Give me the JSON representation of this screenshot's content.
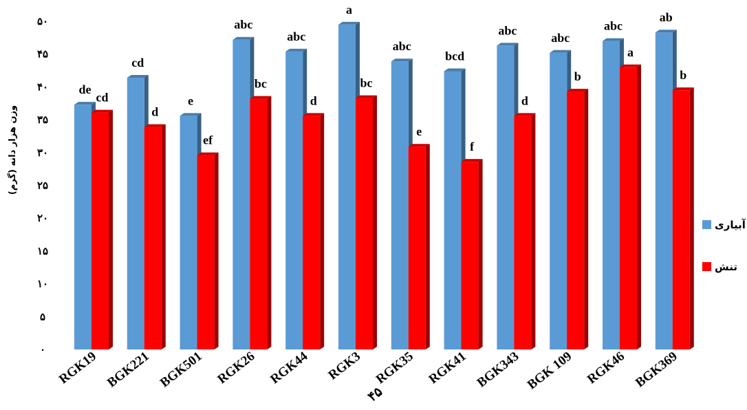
{
  "chart_data": {
    "type": "bar",
    "ylabel": "وزن هزار دانه (گرم)",
    "ylim": [
      0,
      50
    ],
    "yticks": [
      0,
      5,
      10,
      15,
      20,
      25,
      30,
      35,
      40,
      45,
      50
    ],
    "ytick_labels": [
      "۰",
      "۵",
      "۱۰",
      "۱۵",
      "۲۰",
      "۲۵",
      "۳۰",
      "۳۵",
      "۴۰",
      "۴۵",
      "۵۰"
    ],
    "categories": [
      "RGK19",
      "BGK221",
      "BGK501",
      "RGK26",
      "RGK44",
      "RGK3",
      "RGK35",
      "RGK41",
      "BGK343",
      "BGK 109",
      "RGK46",
      "BGK369"
    ],
    "series": [
      {
        "name": "آبیاری",
        "color": "#5b9bd5",
        "values": [
          37.3,
          41.4,
          35.6,
          47.2,
          45.4,
          49.5,
          43.9,
          42.4,
          46.3,
          45.2,
          47.0,
          48.3
        ],
        "labels": [
          "de",
          "cd",
          "e",
          "abc",
          "abc",
          "a",
          "abc",
          "bcd",
          "abc",
          "abc",
          "abc",
          "ab"
        ]
      },
      {
        "name": "تنش",
        "color": "#ff0000",
        "values": [
          36.1,
          33.9,
          29.6,
          38.2,
          35.6,
          38.3,
          30.9,
          28.6,
          35.6,
          39.3,
          43.0,
          39.5
        ],
        "labels": [
          "cd",
          "d",
          "ef",
          "bc",
          "d",
          "bc",
          "e",
          "f",
          "d",
          "b",
          "a",
          "b"
        ]
      }
    ],
    "legend_position": "right",
    "grid": false,
    "stray_text": "۴۵"
  }
}
